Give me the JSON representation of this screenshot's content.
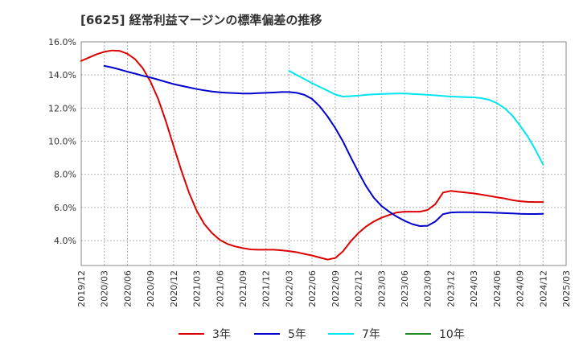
{
  "chart_data": {
    "type": "line",
    "title": "[6625]  経常利益マージンの標準偏差の推移",
    "xlabel": "",
    "ylabel": "",
    "ylim": [
      2.5,
      16.0
    ],
    "y_ticks": [
      "4.0%",
      "6.0%",
      "8.0%",
      "10.0%",
      "12.0%",
      "14.0%",
      "16.0%"
    ],
    "y_tick_values": [
      4,
      6,
      8,
      10,
      12,
      14,
      16
    ],
    "x_ticks": [
      "2019/12",
      "2020/03",
      "2020/06",
      "2020/09",
      "2020/12",
      "2021/03",
      "2021/06",
      "2021/09",
      "2021/12",
      "2022/03",
      "2022/06",
      "2022/09",
      "2022/12",
      "2023/03",
      "2023/06",
      "2023/09",
      "2023/12",
      "2024/03",
      "2024/06",
      "2024/09",
      "2024/12",
      "2025/03"
    ],
    "grid": true,
    "legend_position": "bottom",
    "series": [
      {
        "name": "3年",
        "color": "#dd0000",
        "x": [
          "2019/12",
          "2020/01",
          "2020/02",
          "2020/03",
          "2020/04",
          "2020/05",
          "2020/06",
          "2020/07",
          "2020/08",
          "2020/09",
          "2020/10",
          "2020/11",
          "2020/12",
          "2021/01",
          "2021/02",
          "2021/03",
          "2021/04",
          "2021/05",
          "2021/06",
          "2021/07",
          "2021/08",
          "2021/09",
          "2021/10",
          "2021/11",
          "2021/12",
          "2022/01",
          "2022/02",
          "2022/03",
          "2022/04",
          "2022/05",
          "2022/06",
          "2022/07",
          "2022/08",
          "2022/09",
          "2022/10",
          "2022/11",
          "2022/12",
          "2023/01",
          "2023/02",
          "2023/03",
          "2023/04",
          "2023/05",
          "2023/06",
          "2023/07",
          "2023/08",
          "2023/09",
          "2023/10",
          "2023/11",
          "2023/12",
          "2024/01",
          "2024/02",
          "2024/03",
          "2024/04",
          "2024/05",
          "2024/06",
          "2024/07",
          "2024/08",
          "2024/09",
          "2024/10",
          "2024/11",
          "2024/12"
        ],
        "values": [
          14.85,
          15.05,
          15.25,
          15.4,
          15.48,
          15.45,
          15.28,
          14.95,
          14.4,
          13.6,
          12.55,
          11.2,
          9.7,
          8.25,
          6.9,
          5.8,
          5.0,
          4.45,
          4.05,
          3.8,
          3.65,
          3.55,
          3.47,
          3.45,
          3.45,
          3.45,
          3.42,
          3.37,
          3.3,
          3.2,
          3.1,
          2.98,
          2.86,
          2.95,
          3.35,
          3.95,
          4.45,
          4.85,
          5.15,
          5.38,
          5.55,
          5.7,
          5.75,
          5.75,
          5.75,
          5.85,
          6.2,
          6.9,
          7.0,
          6.95,
          6.9,
          6.85,
          6.78,
          6.7,
          6.62,
          6.55,
          6.45,
          6.38,
          6.34,
          6.33,
          6.33
        ]
      },
      {
        "name": "5年",
        "color": "#0000cc",
        "x": [
          "2020/03",
          "2020/04",
          "2020/05",
          "2020/06",
          "2020/07",
          "2020/08",
          "2020/09",
          "2020/10",
          "2020/11",
          "2020/12",
          "2021/01",
          "2021/02",
          "2021/03",
          "2021/04",
          "2021/05",
          "2021/06",
          "2021/07",
          "2021/08",
          "2021/09",
          "2021/10",
          "2021/11",
          "2021/12",
          "2022/01",
          "2022/02",
          "2022/03",
          "2022/04",
          "2022/05",
          "2022/06",
          "2022/07",
          "2022/08",
          "2022/09",
          "2022/10",
          "2022/11",
          "2022/12",
          "2023/01",
          "2023/02",
          "2023/03",
          "2023/04",
          "2023/05",
          "2023/06",
          "2023/07",
          "2023/08",
          "2023/09",
          "2023/10",
          "2023/11",
          "2023/12",
          "2024/01",
          "2024/02",
          "2024/03",
          "2024/04",
          "2024/05",
          "2024/06",
          "2024/07",
          "2024/08",
          "2024/09",
          "2024/10",
          "2024/11",
          "2024/12"
        ],
        "values": [
          14.55,
          14.45,
          14.33,
          14.2,
          14.08,
          13.95,
          13.85,
          13.72,
          13.58,
          13.45,
          13.35,
          13.25,
          13.15,
          13.07,
          13.0,
          12.95,
          12.92,
          12.9,
          12.88,
          12.88,
          12.9,
          12.92,
          12.94,
          12.97,
          12.97,
          12.92,
          12.8,
          12.55,
          12.1,
          11.5,
          10.8,
          10.0,
          9.05,
          8.15,
          7.3,
          6.6,
          6.1,
          5.75,
          5.45,
          5.2,
          5.0,
          4.88,
          4.9,
          5.15,
          5.6,
          5.7,
          5.72,
          5.72,
          5.72,
          5.71,
          5.7,
          5.68,
          5.66,
          5.64,
          5.62,
          5.61,
          5.61,
          5.62
        ]
      },
      {
        "name": "7年",
        "color": "#00e5ee",
        "x": [
          "2022/03",
          "2022/04",
          "2022/05",
          "2022/06",
          "2022/07",
          "2022/08",
          "2022/09",
          "2022/10",
          "2022/11",
          "2022/12",
          "2023/01",
          "2023/02",
          "2023/03",
          "2023/04",
          "2023/05",
          "2023/06",
          "2023/07",
          "2023/08",
          "2023/09",
          "2023/10",
          "2023/11",
          "2023/12",
          "2024/01",
          "2024/02",
          "2024/03",
          "2024/04",
          "2024/05",
          "2024/06",
          "2024/07",
          "2024/08",
          "2024/09",
          "2024/10",
          "2024/11",
          "2024/12"
        ],
        "values": [
          14.25,
          14.0,
          13.75,
          13.5,
          13.28,
          13.05,
          12.82,
          12.7,
          12.72,
          12.75,
          12.8,
          12.83,
          12.85,
          12.87,
          12.88,
          12.88,
          12.86,
          12.83,
          12.8,
          12.77,
          12.73,
          12.7,
          12.68,
          12.66,
          12.65,
          12.6,
          12.5,
          12.3,
          12.0,
          11.55,
          10.95,
          10.3,
          9.5,
          8.6
        ]
      },
      {
        "name": "10年",
        "color": "#228b22",
        "x": [],
        "values": []
      }
    ]
  }
}
